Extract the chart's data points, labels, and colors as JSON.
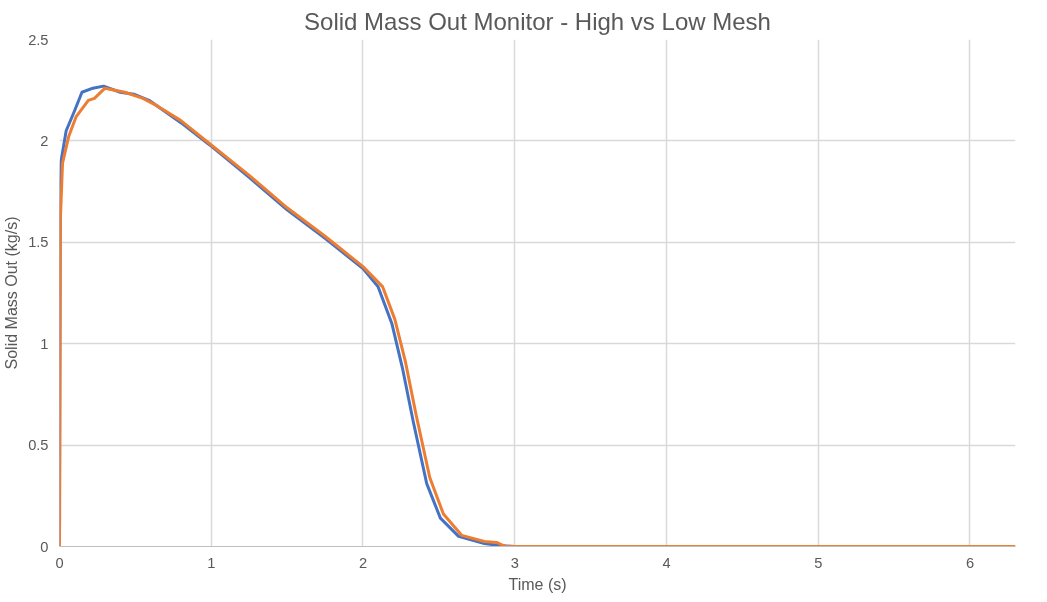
{
  "chart_data": {
    "type": "line",
    "title": "Solid Mass Out Monitor - High vs Low Mesh",
    "xlabel": "Time (s)",
    "ylabel": "Solid Mass Out (kg/s)",
    "xlim": [
      0,
      6.3
    ],
    "xticks": [
      0,
      1,
      2,
      3,
      4,
      5,
      6
    ],
    "ylim": [
      0,
      2.5
    ],
    "yticks": [
      0,
      0.5,
      1,
      1.5,
      2,
      2.5
    ],
    "grid": true,
    "series": [
      {
        "color": "#4472c4",
        "x": [
          0,
          0.005,
          0.01,
          0.044,
          0.1,
          0.148,
          0.22,
          0.29,
          0.4,
          0.49,
          0.59,
          0.8,
          0.99,
          1.25,
          1.5,
          1.75,
          2.0,
          2.1,
          2.19,
          2.26,
          2.33,
          2.42,
          2.51,
          2.63,
          2.8,
          2.9,
          3.0,
          3.5
        ],
        "values": [
          0,
          1.75,
          1.9,
          2.05,
          2.15,
          2.24,
          2.26,
          2.27,
          2.24,
          2.23,
          2.2,
          2.09,
          1.98,
          1.82,
          1.66,
          1.52,
          1.37,
          1.28,
          1.1,
          0.88,
          0.62,
          0.31,
          0.14,
          0.05,
          0.015,
          0.005,
          0,
          0
        ]
      },
      {
        "color": "#ed7d31",
        "x": [
          0,
          0.005,
          0.02,
          0.06,
          0.11,
          0.19,
          0.23,
          0.3,
          0.43,
          0.55,
          0.65,
          0.8,
          1.0,
          1.25,
          1.5,
          1.75,
          2.0,
          2.13,
          2.21,
          2.28,
          2.35,
          2.44,
          2.53,
          2.65,
          2.8,
          2.88,
          2.94,
          3.5,
          4,
          5,
          6,
          6.3
        ],
        "values": [
          0,
          1.6,
          1.89,
          2.02,
          2.12,
          2.2,
          2.21,
          2.26,
          2.24,
          2.21,
          2.17,
          2.1,
          1.98,
          1.83,
          1.67,
          1.53,
          1.38,
          1.28,
          1.12,
          0.91,
          0.65,
          0.34,
          0.16,
          0.055,
          0.025,
          0.02,
          0,
          0,
          0,
          0,
          0,
          0
        ]
      }
    ]
  }
}
